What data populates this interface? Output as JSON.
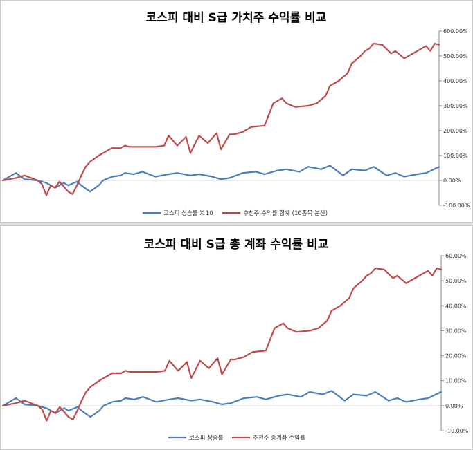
{
  "chart_data": [
    {
      "type": "line",
      "title": "코스피 대비 S급 가치주 수익률 비교",
      "ylim": [
        -100,
        600
      ],
      "yticks": [
        600,
        500,
        400,
        300,
        200,
        100,
        0,
        -100
      ],
      "ytick_labels": [
        "600.00%",
        "500.00%",
        "400.00%",
        "300.00%",
        "200.00%",
        "100.00%",
        "0.00%",
        "-100.00%"
      ],
      "y_axis_side": "right",
      "legend_position": "bottom",
      "grid": false,
      "series": [
        {
          "name": "코스피 상승률 X 10",
          "color": "#4a7ebb",
          "x": [
            0,
            3,
            5,
            8,
            10,
            12,
            14,
            15,
            17,
            18,
            20,
            22,
            23,
            25,
            27,
            28,
            30,
            32,
            35,
            38,
            40,
            43,
            45,
            48,
            50,
            52,
            55,
            58,
            60,
            63,
            65,
            68,
            70,
            73,
            75,
            78,
            80,
            83,
            85,
            88,
            90,
            92,
            95,
            97,
            100
          ],
          "values": [
            0,
            30,
            5,
            0,
            -10,
            -30,
            -10,
            -20,
            -5,
            -20,
            -45,
            -20,
            0,
            15,
            20,
            30,
            25,
            35,
            15,
            25,
            30,
            20,
            25,
            15,
            5,
            10,
            30,
            35,
            25,
            40,
            45,
            35,
            55,
            45,
            60,
            20,
            45,
            40,
            55,
            20,
            30,
            15,
            25,
            30,
            55
          ]
        },
        {
          "name": "추천주 수익률 합계 (10종목 분산)",
          "color": "#be4b48",
          "x": [
            0,
            3,
            5,
            8,
            9,
            10,
            11,
            12,
            13,
            14,
            15,
            16,
            17,
            18,
            19,
            20,
            22,
            24,
            25,
            27,
            28,
            29,
            30,
            32,
            35,
            37,
            38,
            40,
            42,
            43,
            45,
            47,
            49,
            50,
            52,
            53,
            55,
            57,
            60,
            62,
            63,
            64,
            65,
            67,
            70,
            72,
            74,
            75,
            77,
            79,
            80,
            82,
            83,
            84,
            85,
            87,
            89,
            90,
            92,
            94,
            96,
            97,
            98,
            99,
            100
          ],
          "values": [
            0,
            10,
            20,
            0,
            -15,
            -60,
            -20,
            -30,
            -5,
            -25,
            -45,
            -55,
            -20,
            20,
            55,
            75,
            100,
            120,
            130,
            130,
            140,
            135,
            135,
            135,
            135,
            140,
            180,
            140,
            175,
            110,
            180,
            150,
            190,
            125,
            185,
            185,
            195,
            215,
            220,
            310,
            320,
            330,
            310,
            295,
            300,
            310,
            340,
            380,
            400,
            430,
            470,
            500,
            520,
            530,
            550,
            545,
            510,
            520,
            490,
            510,
            530,
            540,
            520,
            550,
            545
          ]
        }
      ]
    },
    {
      "type": "line",
      "title": "코스피 대비 S급 총 계좌 수익률 비교",
      "ylim": [
        -10,
        60
      ],
      "yticks": [
        60,
        50,
        40,
        30,
        20,
        10,
        0,
        -10
      ],
      "ytick_labels": [
        "60.00%",
        "50.00%",
        "40.00%",
        "30.00%",
        "20.00%",
        "10.00%",
        "0.00%",
        "-10.00%"
      ],
      "y_axis_side": "right",
      "legend_position": "bottom",
      "grid": false,
      "series": [
        {
          "name": "코스피 상승률",
          "color": "#4a7ebb",
          "x": [
            0,
            3,
            5,
            8,
            10,
            12,
            14,
            15,
            17,
            18,
            20,
            22,
            23,
            25,
            27,
            28,
            30,
            32,
            35,
            38,
            40,
            43,
            45,
            48,
            50,
            52,
            55,
            58,
            60,
            63,
            65,
            68,
            70,
            73,
            75,
            78,
            80,
            83,
            85,
            88,
            90,
            92,
            95,
            97,
            100
          ],
          "values": [
            0,
            3,
            0.5,
            0,
            -1,
            -3,
            -1,
            -2,
            -0.5,
            -2,
            -4.5,
            -2,
            0,
            1.5,
            2,
            3,
            2.5,
            3.5,
            1.5,
            2.5,
            3,
            2,
            2.5,
            1.5,
            0.5,
            1,
            3,
            3.5,
            2.5,
            4,
            4.5,
            3.5,
            5.5,
            4.5,
            6,
            2,
            4.5,
            4,
            5.5,
            2,
            3,
            1.5,
            2.5,
            3,
            5.5
          ]
        },
        {
          "name": "추천주 총계좌 수익률",
          "color": "#be4b48",
          "x": [
            0,
            3,
            5,
            8,
            9,
            10,
            11,
            12,
            13,
            14,
            15,
            16,
            17,
            18,
            19,
            20,
            22,
            24,
            25,
            27,
            28,
            29,
            30,
            32,
            35,
            37,
            38,
            40,
            42,
            43,
            45,
            47,
            49,
            50,
            52,
            53,
            55,
            57,
            60,
            62,
            63,
            64,
            65,
            67,
            70,
            72,
            74,
            75,
            77,
            79,
            80,
            82,
            83,
            84,
            85,
            87,
            89,
            90,
            92,
            94,
            96,
            97,
            98,
            99,
            100
          ],
          "values": [
            0,
            1,
            2,
            0,
            -1.5,
            -6,
            -2,
            -3,
            -0.5,
            -2.5,
            -4.5,
            -5.5,
            -2,
            2,
            5.5,
            7.5,
            10,
            12,
            13,
            13,
            14,
            13.5,
            13.5,
            13.5,
            13.5,
            14,
            18,
            14,
            17.5,
            11,
            18,
            15,
            19,
            12.5,
            18.5,
            18.5,
            19.5,
            21.5,
            22,
            31,
            32,
            33,
            31,
            29.5,
            30,
            31,
            34,
            38,
            40,
            43,
            47,
            50,
            52,
            53,
            55,
            54.5,
            51,
            52,
            49,
            51,
            53,
            54,
            52,
            55,
            54.5
          ]
        }
      ]
    }
  ]
}
